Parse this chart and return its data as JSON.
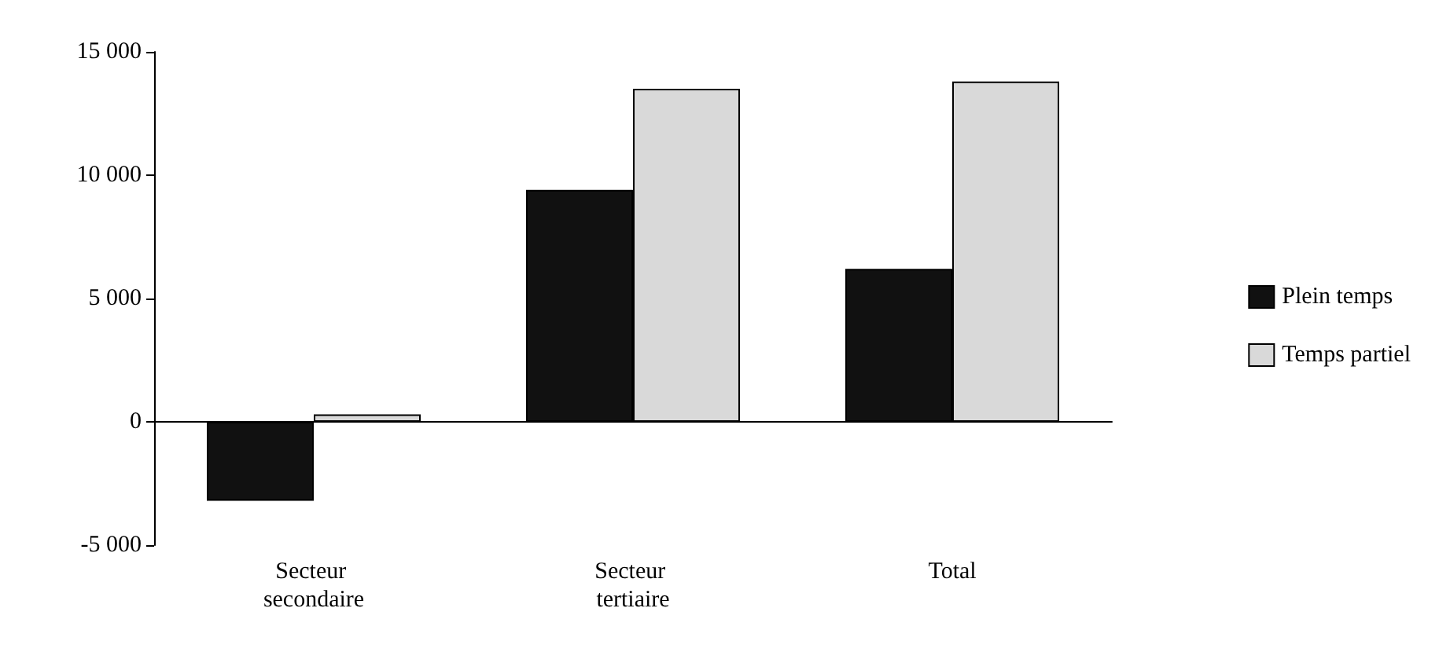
{
  "chart_data": {
    "type": "bar",
    "categories": [
      "Secteur secondaire",
      "Secteur tertiaire",
      "Total"
    ],
    "series": [
      {
        "name": "Plein temps",
        "color": "#111111",
        "values": [
          -3200,
          9400,
          6200
        ]
      },
      {
        "name": "Temps partiel",
        "color": "#d9d9d9",
        "values": [
          300,
          13500,
          13800
        ]
      }
    ],
    "ylim": [
      -5000,
      15000
    ],
    "yticks": [
      {
        "value": -5000,
        "label": "-5 000"
      },
      {
        "value": 0,
        "label": "0"
      },
      {
        "value": 5000,
        "label": "5 000"
      },
      {
        "value": 10000,
        "label": "10 000"
      },
      {
        "value": 15000,
        "label": "15 000"
      }
    ],
    "legend": "right"
  }
}
